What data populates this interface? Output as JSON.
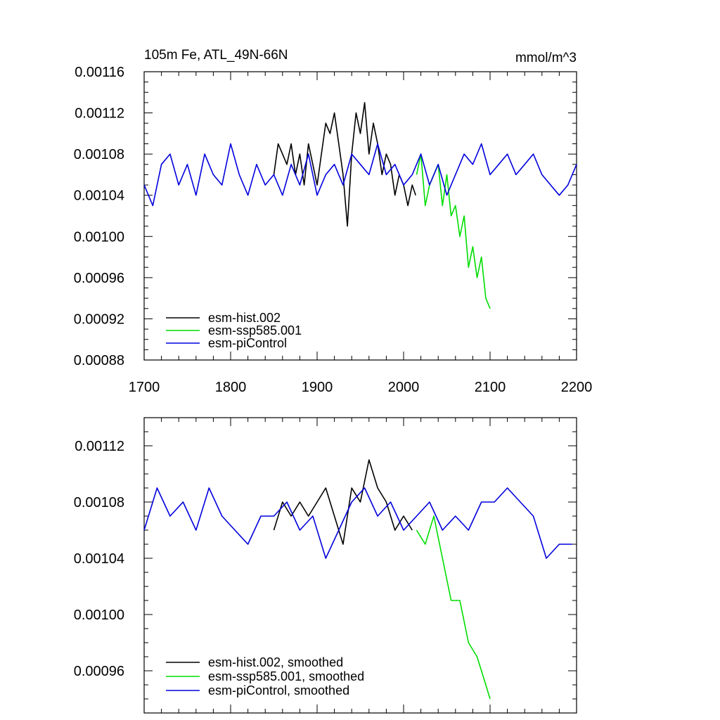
{
  "chart_data": [
    {
      "type": "line",
      "title": "105m Fe, ATL_49N-66N",
      "units": "mmol/m^3",
      "xlim": [
        1700,
        2200
      ],
      "ylim": [
        0.00088,
        0.00116
      ],
      "x_ticks": [
        1700,
        1800,
        1900,
        2000,
        2100,
        2200
      ],
      "y_ticks": [
        "0.00088",
        "0.00092",
        "0.00096",
        "0.00100",
        "0.00104",
        "0.00108",
        "0.00112",
        "0.00116"
      ],
      "legend_position": "bottom-left",
      "series": [
        {
          "name": "esm-hist.002",
          "color": "#000000",
          "x": [
            1850,
            1855,
            1860,
            1865,
            1870,
            1875,
            1880,
            1885,
            1890,
            1895,
            1900,
            1905,
            1910,
            1915,
            1920,
            1925,
            1930,
            1935,
            1940,
            1945,
            1950,
            1955,
            1960,
            1965,
            1970,
            1975,
            1980,
            1985,
            1990,
            1995,
            2000,
            2005,
            2010,
            2014
          ],
          "y": [
            0.00106,
            0.00109,
            0.00108,
            0.00107,
            0.00109,
            0.00106,
            0.00108,
            0.00105,
            0.00109,
            0.00107,
            0.00105,
            0.00108,
            0.00111,
            0.0011,
            0.00112,
            0.00109,
            0.00106,
            0.00101,
            0.00108,
            0.00112,
            0.0011,
            0.00113,
            0.00108,
            0.00111,
            0.00109,
            0.00106,
            0.00108,
            0.00107,
            0.00104,
            0.00106,
            0.00105,
            0.00103,
            0.00105,
            0.00104
          ]
        },
        {
          "name": "esm-ssp585.001",
          "color": "#00dd00",
          "x": [
            2015,
            2020,
            2025,
            2030,
            2035,
            2040,
            2045,
            2050,
            2055,
            2060,
            2065,
            2070,
            2075,
            2080,
            2085,
            2090,
            2095,
            2100
          ],
          "y": [
            0.00106,
            0.00108,
            0.00103,
            0.00105,
            0.00106,
            0.00107,
            0.00103,
            0.00106,
            0.00102,
            0.00103,
            0.001,
            0.00102,
            0.00097,
            0.00099,
            0.00096,
            0.00098,
            0.00094,
            0.00093
          ]
        },
        {
          "name": "esm-piControl",
          "color": "#0000dd",
          "x": [
            1700,
            1710,
            1720,
            1730,
            1740,
            1750,
            1760,
            1770,
            1780,
            1790,
            1800,
            1810,
            1820,
            1830,
            1840,
            1850,
            1860,
            1870,
            1880,
            1890,
            1900,
            1910,
            1920,
            1930,
            1940,
            1950,
            1960,
            1970,
            1980,
            1990,
            2000,
            2010,
            2020,
            2030,
            2040,
            2050,
            2060,
            2070,
            2080,
            2090,
            2100,
            2110,
            2120,
            2130,
            2140,
            2150,
            2160,
            2170,
            2180,
            2190,
            2200
          ],
          "y": [
            0.00105,
            0.00103,
            0.00107,
            0.00108,
            0.00105,
            0.00107,
            0.00104,
            0.00108,
            0.00106,
            0.00105,
            0.00109,
            0.00106,
            0.00104,
            0.00107,
            0.00105,
            0.00106,
            0.00104,
            0.00107,
            0.00105,
            0.00108,
            0.00104,
            0.00106,
            0.00107,
            0.00105,
            0.00108,
            0.00107,
            0.00106,
            0.00109,
            0.00106,
            0.00107,
            0.00105,
            0.00106,
            0.00108,
            0.00105,
            0.00107,
            0.00104,
            0.00106,
            0.00108,
            0.00107,
            0.00109,
            0.00106,
            0.00107,
            0.00108,
            0.00106,
            0.00107,
            0.00108,
            0.00106,
            0.00105,
            0.00104,
            0.00105,
            0.00107
          ]
        }
      ]
    },
    {
      "type": "line",
      "xlim": [
        1700,
        2200
      ],
      "ylim": [
        0.00093,
        0.00114
      ],
      "y_ticks": [
        "0.00096",
        "0.00100",
        "0.00104",
        "0.00108",
        "0.00112"
      ],
      "legend_position": "bottom-left",
      "series": [
        {
          "name": "esm-hist.002, smoothed",
          "color": "#000000",
          "x": [
            1850,
            1860,
            1870,
            1880,
            1890,
            1900,
            1910,
            1920,
            1930,
            1940,
            1950,
            1960,
            1970,
            1980,
            1990,
            2000,
            2010
          ],
          "y": [
            0.00106,
            0.00108,
            0.00107,
            0.00108,
            0.00107,
            0.00108,
            0.00109,
            0.00107,
            0.00105,
            0.00109,
            0.00108,
            0.00111,
            0.00109,
            0.00108,
            0.00106,
            0.00107,
            0.00106
          ]
        },
        {
          "name": "esm-ssp585.001, smoothed",
          "color": "#00dd00",
          "x": [
            2015,
            2025,
            2035,
            2045,
            2055,
            2065,
            2075,
            2085,
            2095,
            2100
          ],
          "y": [
            0.00106,
            0.00105,
            0.00107,
            0.00104,
            0.00101,
            0.00101,
            0.00098,
            0.00097,
            0.00095,
            0.00094
          ]
        },
        {
          "name": "esm-piControl, smoothed",
          "color": "#0000dd",
          "x": [
            1700,
            1715,
            1730,
            1745,
            1760,
            1775,
            1790,
            1805,
            1820,
            1835,
            1850,
            1865,
            1880,
            1895,
            1910,
            1925,
            1940,
            1955,
            1970,
            1985,
            2000,
            2015,
            2030,
            2045,
            2060,
            2075,
            2090,
            2105,
            2120,
            2135,
            2150,
            2165,
            2180,
            2195
          ],
          "y": [
            0.00106,
            0.00109,
            0.00107,
            0.00108,
            0.00106,
            0.00109,
            0.00107,
            0.00106,
            0.00105,
            0.00107,
            0.00107,
            0.00108,
            0.00106,
            0.00107,
            0.00104,
            0.00106,
            0.00108,
            0.00109,
            0.00107,
            0.00108,
            0.00106,
            0.00107,
            0.00108,
            0.00106,
            0.00107,
            0.00106,
            0.00108,
            0.00108,
            0.00109,
            0.00108,
            0.00107,
            0.00104,
            0.00105,
            0.00105
          ]
        }
      ]
    }
  ]
}
